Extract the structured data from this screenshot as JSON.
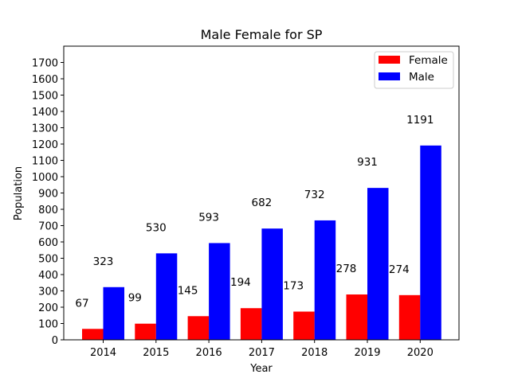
{
  "chart_data": {
    "type": "bar",
    "title": "Male Female for SP",
    "xlabel": "Year",
    "ylabel": "Population",
    "categories": [
      "2014",
      "2015",
      "2016",
      "2017",
      "2018",
      "2019",
      "2020"
    ],
    "series": [
      {
        "name": "Female",
        "color": "#ff0000",
        "values": [
          67,
          99,
          145,
          194,
          173,
          278,
          274
        ]
      },
      {
        "name": "Male",
        "color": "#0000ff",
        "values": [
          323,
          530,
          593,
          682,
          732,
          931,
          1191
        ]
      }
    ],
    "ylim": [
      0,
      1800
    ],
    "yticks": [
      0,
      100,
      200,
      300,
      400,
      500,
      600,
      700,
      800,
      900,
      1000,
      1100,
      1200,
      1300,
      1400,
      1500,
      1600,
      1700
    ],
    "grid": false,
    "legend_position": "top-right",
    "data_labels": true
  }
}
